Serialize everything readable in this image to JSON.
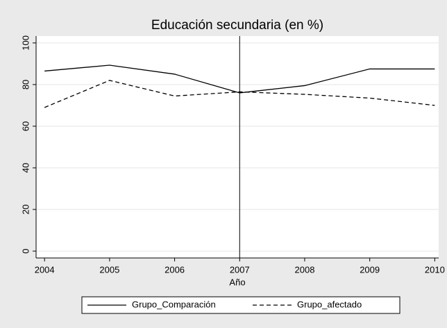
{
  "chart_data": {
    "type": "line",
    "title": "Educación secundaria (en %)",
    "x_label": "Año",
    "x": [
      2004,
      2005,
      2006,
      2007,
      2008,
      2009,
      2010
    ],
    "series": [
      {
        "name": "Grupo_Comparación",
        "color": "#000000",
        "linestyle": "solid",
        "values": [
          86.5,
          89.3,
          85,
          76,
          79.5,
          87.5,
          87.5
        ]
      },
      {
        "name": "Grupo_afectado",
        "color": "#000000",
        "linestyle": "dashed",
        "values": [
          69,
          82,
          74.5,
          76.5,
          75.3,
          73.5,
          70
        ]
      }
    ],
    "xlim": [
      2003.87,
      2010.06
    ],
    "xticks": [
      2004,
      2005,
      2006,
      2007,
      2008,
      2009,
      2010
    ],
    "ylim": [
      -3.3,
      103.3
    ],
    "yticks": [
      0,
      20,
      40,
      60,
      80,
      100
    ],
    "vline": 2007,
    "grid": true,
    "legend": "bottom"
  }
}
